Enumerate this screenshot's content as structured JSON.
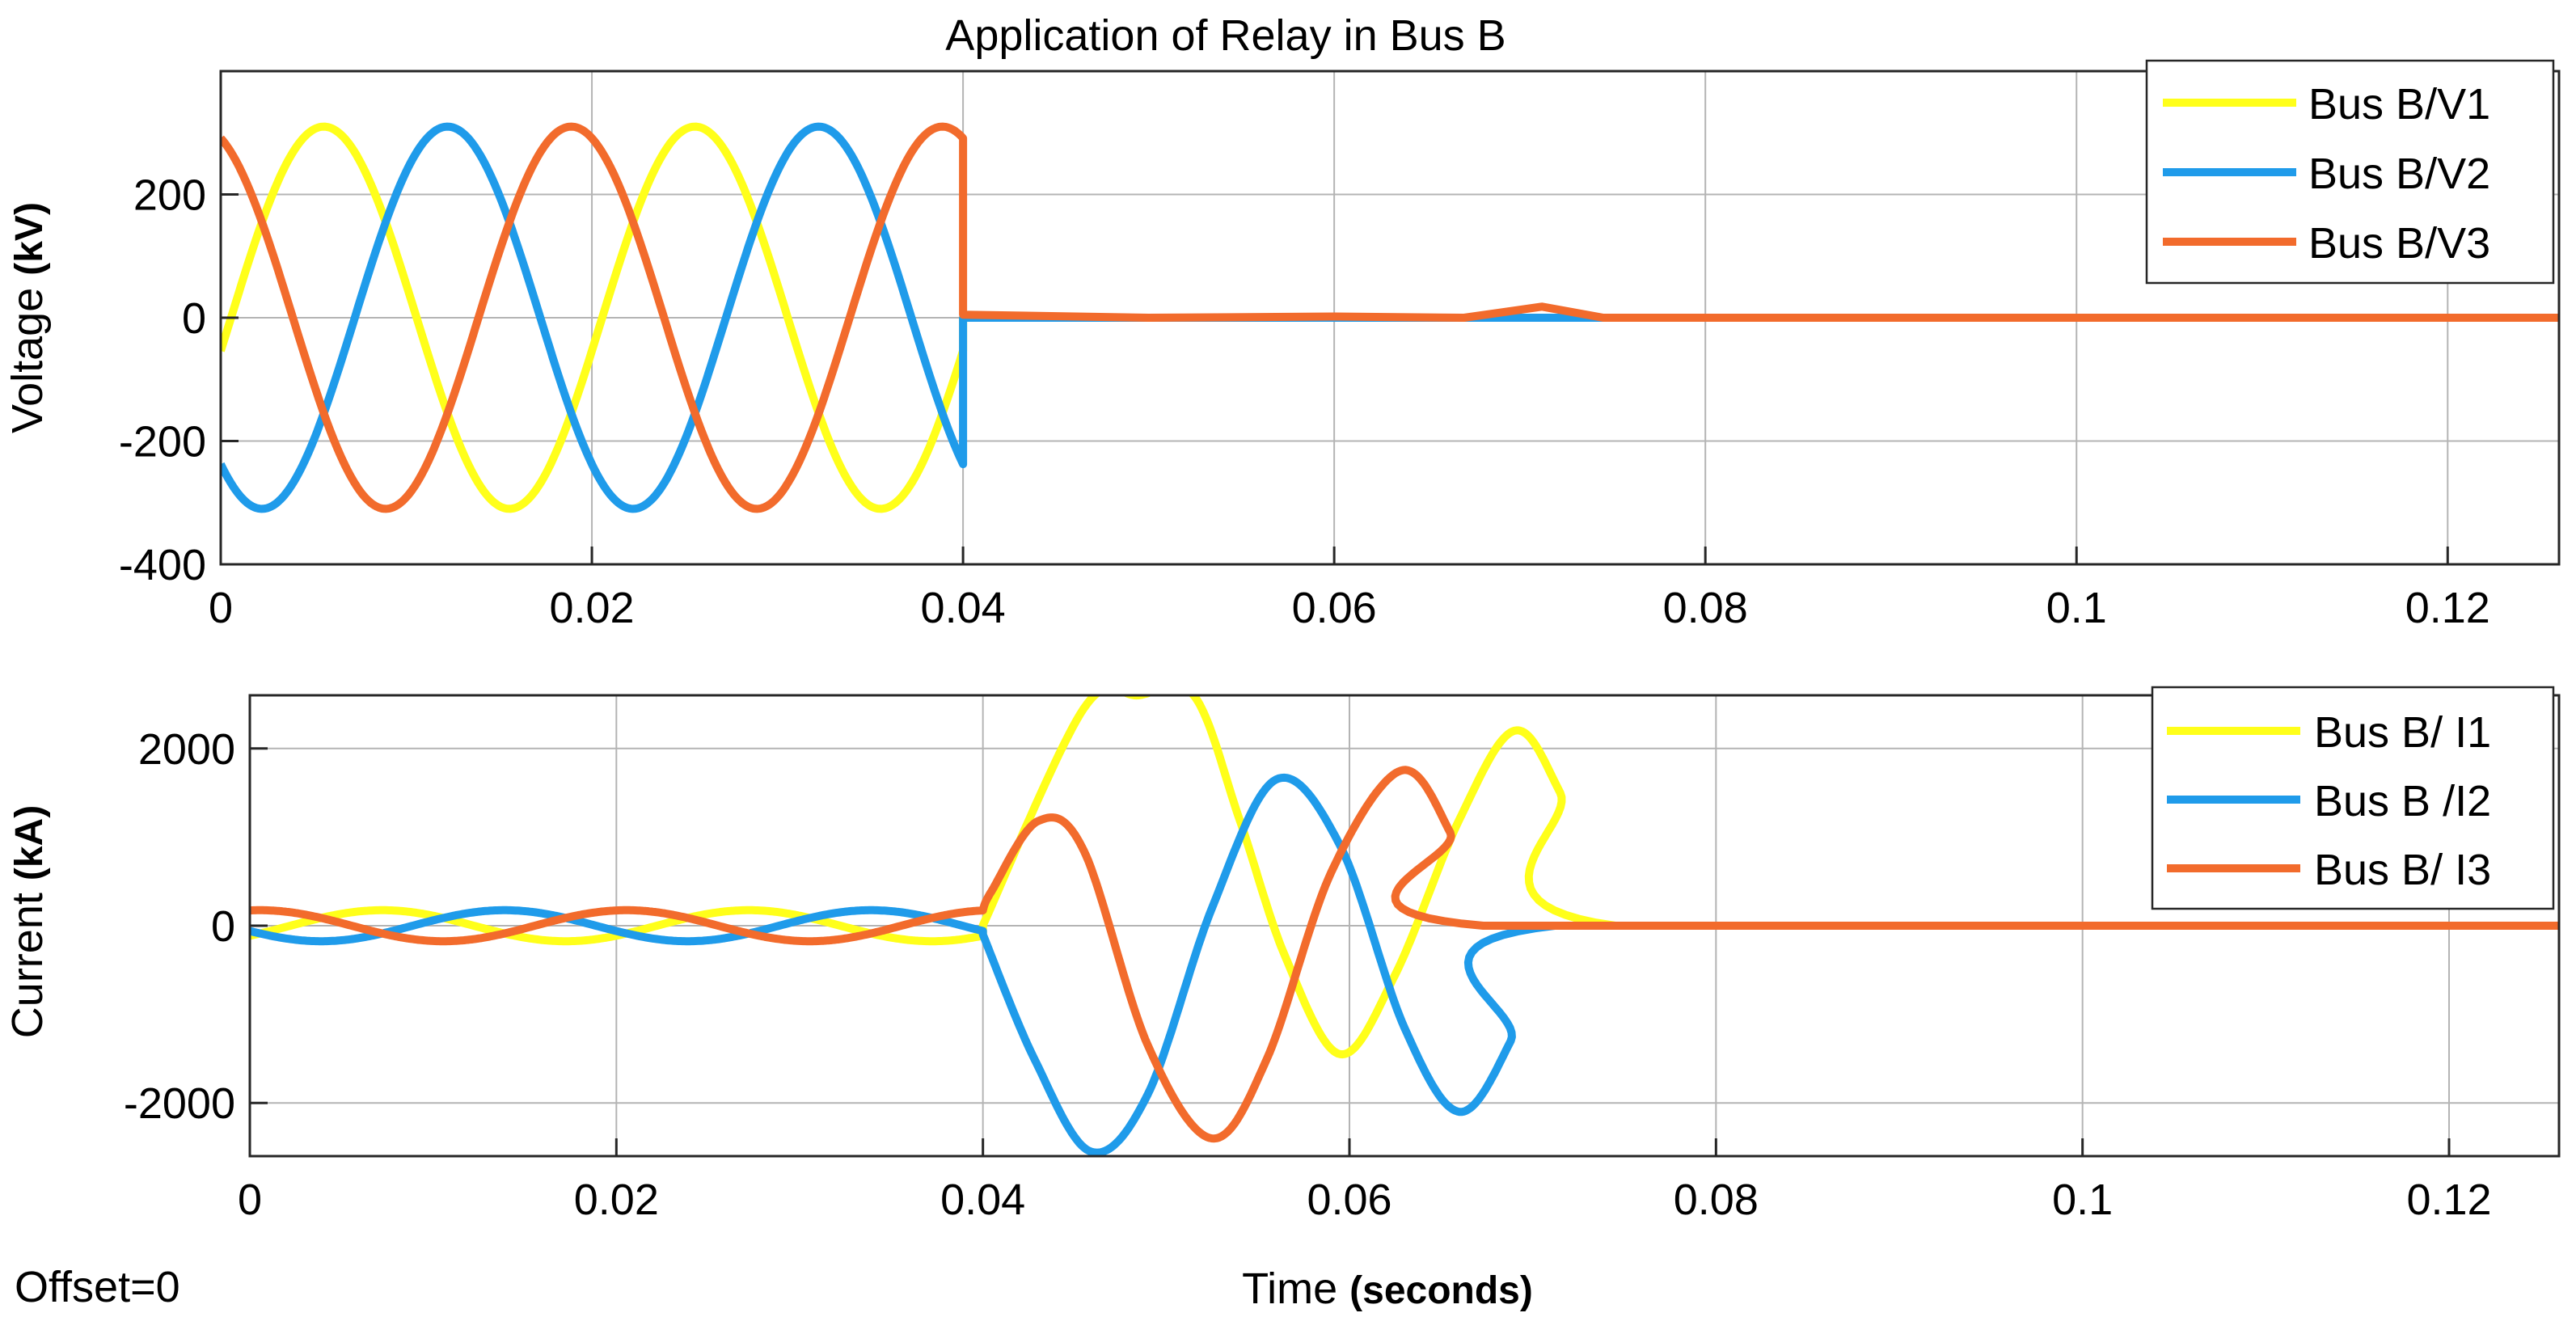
{
  "chart_data": [
    {
      "type": "line",
      "title": "Application of Relay in Bus B",
      "xlabel": "",
      "ylabel": "Voltage",
      "ylabel_unit": "(kV)",
      "xlim": [
        0,
        0.126
      ],
      "ylim": [
        -400,
        400
      ],
      "xticks": [
        0,
        0.02,
        0.04,
        0.06,
        0.08,
        0.1,
        0.12
      ],
      "yticks": [
        -400,
        -200,
        0,
        200
      ],
      "legend_position": "top-right",
      "grid": true,
      "series": [
        {
          "name": "Bus B/V1",
          "color": "#ffff1a",
          "amplitude": 310,
          "phase_deg": -10,
          "post_fault": [
            [
              0.04,
              0
            ],
            [
              0.126,
              0
            ]
          ]
        },
        {
          "name": "Bus B/V2",
          "color": "#1f9bea",
          "amplitude": 310,
          "phase_deg": -130,
          "post_fault": [
            [
              0.04,
              0
            ],
            [
              0.067,
              0
            ],
            [
              0.126,
              0
            ]
          ]
        },
        {
          "name": "Bus B/V3",
          "color": "#f26b2c",
          "amplitude": 310,
          "phase_deg": 110,
          "post_fault": [
            [
              0.04,
              5
            ],
            [
              0.05,
              0
            ],
            [
              0.06,
              2
            ],
            [
              0.067,
              0
            ],
            [
              0.0712,
              18
            ],
            [
              0.0745,
              0
            ],
            [
              0.126,
              0
            ]
          ]
        }
      ]
    },
    {
      "type": "line",
      "title": "",
      "xlabel": "Time",
      "xlabel_unit": "(seconds)",
      "ylabel": "Current",
      "ylabel_unit": "(kA)",
      "xlim": [
        0,
        0.126
      ],
      "ylim": [
        -2600,
        2600
      ],
      "xticks": [
        0,
        0.02,
        0.04,
        0.06,
        0.08,
        0.1,
        0.12
      ],
      "yticks": [
        -2000,
        0,
        2000
      ],
      "legend_position": "top-right",
      "grid": true,
      "series": [
        {
          "name": "Bus B/ I1",
          "color": "#ffff1a",
          "pre_amplitude": 175,
          "pre_phase_deg": -40,
          "fault": [
            [
              0.04,
              5
            ],
            [
              0.0455,
              2450
            ],
            [
              0.0485,
              2600
            ],
            [
              0.0515,
              2600
            ],
            [
              0.054,
              1200
            ],
            [
              0.0565,
              -350
            ],
            [
              0.0595,
              -1450
            ],
            [
              0.0625,
              -550
            ],
            [
              0.066,
              1200
            ],
            [
              0.069,
              2200
            ],
            [
              0.0715,
              1500
            ],
            [
              0.0745,
              0
            ],
            [
              0.126,
              0
            ]
          ]
        },
        {
          "name": "Bus B /I2",
          "color": "#1f9bea",
          "pre_amplitude": 175,
          "pre_phase_deg": -160,
          "fault": [
            [
              0.04,
              -100
            ],
            [
              0.0428,
              -1500
            ],
            [
              0.0459,
              -2550
            ],
            [
              0.049,
              -1900
            ],
            [
              0.0525,
              200
            ],
            [
              0.056,
              1650
            ],
            [
              0.0595,
              900
            ],
            [
              0.063,
              -1150
            ],
            [
              0.066,
              -2100
            ],
            [
              0.0688,
              -1300
            ],
            [
              0.0712,
              0
            ],
            [
              0.126,
              0
            ]
          ]
        },
        {
          "name": "Bus B/ I3",
          "color": "#f26b2c",
          "pre_amplitude": 175,
          "pre_phase_deg": 80,
          "fault": [
            [
              0.04,
              180
            ],
            [
              0.0405,
              400
            ],
            [
              0.043,
              1180
            ],
            [
              0.0455,
              850
            ],
            [
              0.049,
              -1350
            ],
            [
              0.0525,
              -2400
            ],
            [
              0.0555,
              -1500
            ],
            [
              0.059,
              600
            ],
            [
              0.0628,
              1750
            ],
            [
              0.0655,
              1050
            ],
            [
              0.0673,
              0
            ],
            [
              0.126,
              0
            ]
          ]
        }
      ]
    }
  ],
  "footer": {
    "offset_label": "Offset=0"
  }
}
